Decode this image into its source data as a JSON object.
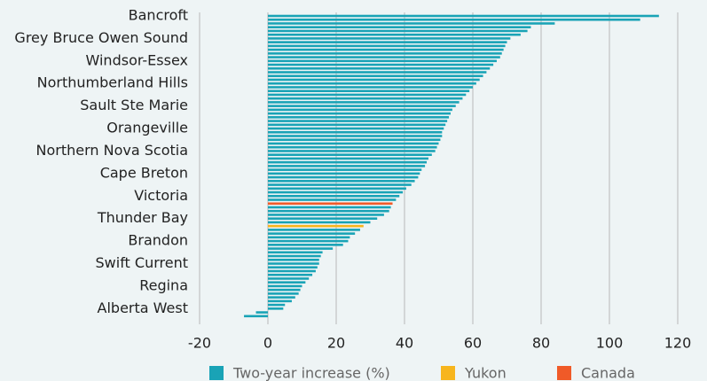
{
  "chart_data": {
    "type": "barh",
    "categories": [
      "Bancroft",
      null,
      null,
      null,
      null,
      null,
      "Grey Bruce Owen Sound",
      null,
      null,
      null,
      null,
      null,
      "Windsor-Essex",
      null,
      null,
      null,
      null,
      null,
      "Northumberland Hills",
      null,
      null,
      null,
      null,
      null,
      "Sault Ste Marie",
      null,
      null,
      null,
      null,
      null,
      "Orangeville",
      null,
      null,
      null,
      null,
      null,
      "Northern Nova Scotia",
      null,
      null,
      null,
      null,
      null,
      "Cape Breton",
      null,
      null,
      null,
      null,
      null,
      "Victoria",
      null,
      null,
      null,
      null,
      null,
      "Thunder Bay",
      null,
      null,
      null,
      null,
      null,
      "Brandon",
      null,
      null,
      null,
      null,
      null,
      "Swift Current",
      null,
      null,
      null,
      null,
      null,
      "Regina",
      null,
      null,
      null,
      null,
      null,
      "Alberta West",
      null,
      null
    ],
    "series": [
      {
        "name": "Two-year increase (%)",
        "color": "#19a3b6",
        "values": [
          114.5,
          109,
          84,
          77,
          76,
          74,
          71,
          70,
          69.5,
          69,
          68.5,
          68,
          67,
          66,
          65,
          64,
          63,
          62,
          61,
          60,
          59,
          58,
          57,
          56,
          55,
          54,
          53.5,
          53,
          52.5,
          52,
          51.5,
          51,
          51,
          50.5,
          50,
          49.5,
          49,
          48,
          47,
          46.5,
          46,
          45,
          44.5,
          44,
          43,
          42,
          40.5,
          39.5,
          38.5,
          37.5,
          null,
          36,
          35.5,
          34,
          32,
          30,
          null,
          27,
          25.5,
          24,
          23.5,
          22,
          19,
          16,
          15.5,
          15,
          15,
          14.5,
          14,
          13,
          12,
          11,
          10,
          9.5,
          9,
          8,
          7,
          5,
          4.5,
          -3.5,
          -7
        ]
      },
      {
        "name": "Yukon",
        "color": "#f7b51d",
        "values": [
          null,
          null,
          null,
          null,
          null,
          null,
          null,
          null,
          null,
          null,
          null,
          null,
          null,
          null,
          null,
          null,
          null,
          null,
          null,
          null,
          null,
          null,
          null,
          null,
          null,
          null,
          null,
          null,
          null,
          null,
          null,
          null,
          null,
          null,
          null,
          null,
          null,
          null,
          null,
          null,
          null,
          null,
          null,
          null,
          null,
          null,
          null,
          null,
          null,
          null,
          null,
          null,
          null,
          null,
          null,
          null,
          28,
          null,
          null,
          null,
          null,
          null,
          null,
          null,
          null,
          null,
          null,
          null,
          null,
          null,
          null,
          null,
          null,
          null,
          null,
          null,
          null,
          null,
          null,
          null,
          null
        ]
      },
      {
        "name": "Canada",
        "color": "#f05a28",
        "values": [
          null,
          null,
          null,
          null,
          null,
          null,
          null,
          null,
          null,
          null,
          null,
          null,
          null,
          null,
          null,
          null,
          null,
          null,
          null,
          null,
          null,
          null,
          null,
          null,
          null,
          null,
          null,
          null,
          null,
          null,
          null,
          null,
          null,
          null,
          null,
          null,
          null,
          null,
          null,
          null,
          null,
          null,
          null,
          null,
          null,
          null,
          null,
          null,
          null,
          null,
          36.5,
          null,
          null,
          null,
          null,
          null,
          null,
          null,
          null,
          null,
          null,
          null,
          null,
          null,
          null,
          null,
          null,
          null,
          null,
          null,
          null,
          null,
          null,
          null,
          null,
          null,
          null,
          null,
          null,
          null,
          null
        ]
      }
    ],
    "xlim": [
      -20,
      120
    ],
    "xticks": [
      -20,
      0,
      20,
      40,
      60,
      80,
      100,
      120
    ],
    "grid": true
  }
}
